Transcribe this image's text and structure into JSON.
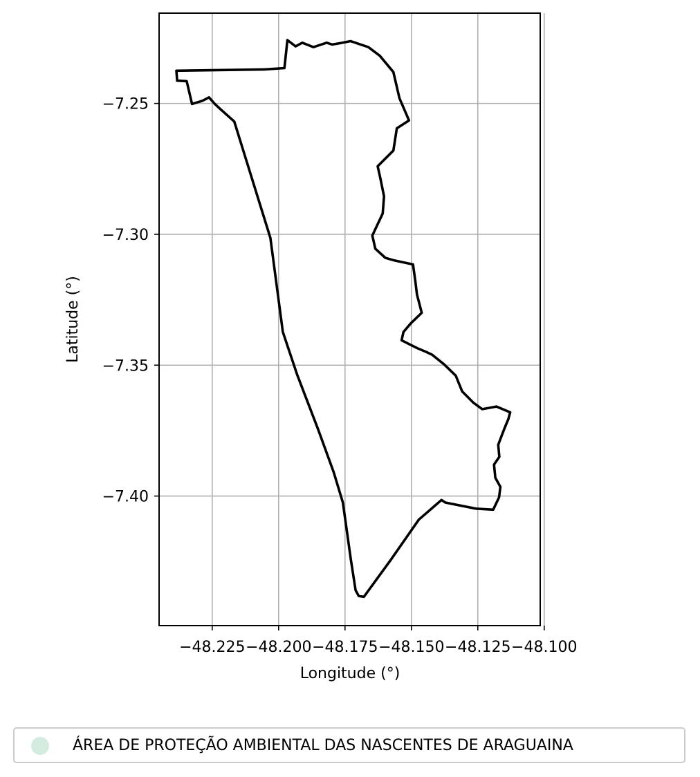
{
  "chart_data": {
    "type": "map",
    "xlabel": "Longitude (°)",
    "ylabel": "Latitude (°)",
    "xlim": [
      -48.245,
      -48.1015
    ],
    "ylim": [
      -7.4495,
      -7.2155
    ],
    "x_ticks": [
      -48.225,
      -48.2,
      -48.175,
      -48.15,
      -48.125,
      -48.1
    ],
    "x_tick_labels": [
      "−48.225",
      "−48.200",
      "−48.175",
      "−48.150",
      "−48.125",
      "−48.100"
    ],
    "y_ticks": [
      -7.25,
      -7.3,
      -7.35,
      -7.4
    ],
    "y_tick_labels": [
      "−7.25",
      "−7.30",
      "−7.35",
      "−7.40"
    ],
    "grid": true,
    "boundary_color": "#000000",
    "legend": {
      "placement": "below",
      "entries": [
        {
          "label": "ÁREA DE PROTEÇÃO AMBIENTAL DAS NASCENTES DE ARAGUAINA",
          "color": "#d4ece0"
        }
      ]
    },
    "boundary": [
      [
        -48.2385,
        -7.2375
      ],
      [
        -48.2382,
        -7.2413
      ],
      [
        -48.2346,
        -7.2415
      ],
      [
        -48.2326,
        -7.2502
      ],
      [
        -48.2287,
        -7.249
      ],
      [
        -48.2262,
        -7.2477
      ],
      [
        -48.224,
        -7.2502
      ],
      [
        -48.2221,
        -7.252
      ],
      [
        -48.2167,
        -7.2569
      ],
      [
        -48.2031,
        -7.3014
      ],
      [
        -48.1984,
        -7.3373
      ],
      [
        -48.193,
        -7.3537
      ],
      [
        -48.1852,
        -7.3743
      ],
      [
        -48.1793,
        -7.3908
      ],
      [
        -48.1758,
        -7.4025
      ],
      [
        -48.1728,
        -7.4242
      ],
      [
        -48.171,
        -7.436
      ],
      [
        -48.1698,
        -7.4382
      ],
      [
        -48.1679,
        -7.4385
      ],
      [
        -48.1579,
        -7.4246
      ],
      [
        -48.1472,
        -7.409
      ],
      [
        -48.1387,
        -7.4015
      ],
      [
        -48.1372,
        -7.4025
      ],
      [
        -48.1257,
        -7.4048
      ],
      [
        -48.1192,
        -7.4052
      ],
      [
        -48.117,
        -7.4005
      ],
      [
        -48.1165,
        -7.3965
      ],
      [
        -48.1184,
        -7.393
      ],
      [
        -48.1189,
        -7.388
      ],
      [
        -48.1169,
        -7.385
      ],
      [
        -48.1173,
        -7.3804
      ],
      [
        -48.1151,
        -7.3745
      ],
      [
        -48.1135,
        -7.3706
      ],
      [
        -48.1128,
        -7.368
      ],
      [
        -48.118,
        -7.3658
      ],
      [
        -48.1233,
        -7.3668
      ],
      [
        -48.1267,
        -7.3643
      ],
      [
        -48.1309,
        -7.36
      ],
      [
        -48.1333,
        -7.354
      ],
      [
        -48.1378,
        -7.3496
      ],
      [
        -48.1422,
        -7.346
      ],
      [
        -48.1447,
        -7.3448
      ],
      [
        -48.1478,
        -7.3435
      ],
      [
        -48.1537,
        -7.3405
      ],
      [
        -48.153,
        -7.3373
      ],
      [
        -48.1502,
        -7.334
      ],
      [
        -48.1461,
        -7.33
      ],
      [
        -48.1479,
        -7.323
      ],
      [
        -48.1485,
        -7.318
      ],
      [
        -48.1494,
        -7.3115
      ],
      [
        -48.1564,
        -7.31
      ],
      [
        -48.1598,
        -7.309
      ],
      [
        -48.1636,
        -7.3055
      ],
      [
        -48.1647,
        -7.3005
      ],
      [
        -48.1608,
        -7.292
      ],
      [
        -48.1603,
        -7.2855
      ],
      [
        -48.1617,
        -7.2785
      ],
      [
        -48.1627,
        -7.274
      ],
      [
        -48.1568,
        -7.268
      ],
      [
        -48.1555,
        -7.2595
      ],
      [
        -48.1509,
        -7.2565
      ],
      [
        -48.1545,
        -7.248
      ],
      [
        -48.1568,
        -7.238
      ],
      [
        -48.1619,
        -7.2318
      ],
      [
        -48.1662,
        -7.2285
      ],
      [
        -48.1729,
        -7.2262
      ],
      [
        -48.1769,
        -7.227
      ],
      [
        -48.1798,
        -7.2275
      ],
      [
        -48.1819,
        -7.2268
      ],
      [
        -48.1869,
        -7.2285
      ],
      [
        -48.1911,
        -7.2268
      ],
      [
        -48.1936,
        -7.2282
      ],
      [
        -48.1967,
        -7.2258
      ],
      [
        -48.1978,
        -7.2365
      ],
      [
        -48.2053,
        -7.237
      ],
      [
        -48.2385,
        -7.2375
      ]
    ]
  }
}
